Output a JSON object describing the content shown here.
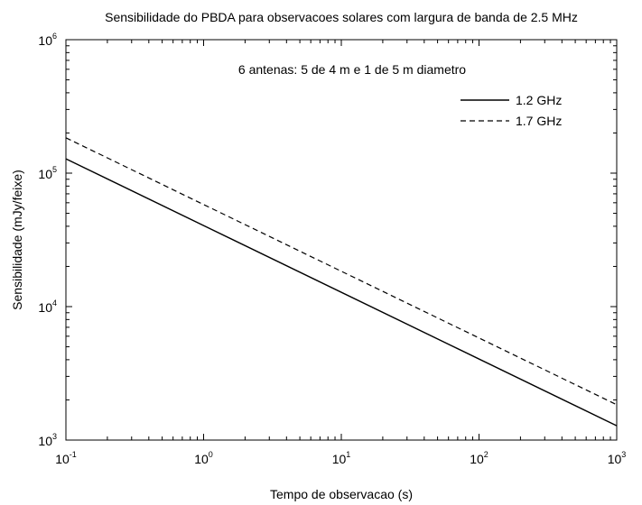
{
  "chart_data": {
    "type": "line",
    "title": "Sensibilidade do PBDA para observacoes solares com largura de banda de 2.5 MHz",
    "xlabel": "Tempo de observacao (s)",
    "ylabel": "Sensibilidade (mJy/feixe)",
    "x_scale": "log",
    "y_scale": "log",
    "xlim": [
      0.1,
      1000
    ],
    "ylim": [
      1000,
      1000000
    ],
    "x_ticks": [
      {
        "base": "10",
        "exp": "-1",
        "value": 0.1
      },
      {
        "base": "10",
        "exp": "0",
        "value": 1
      },
      {
        "base": "10",
        "exp": "1",
        "value": 10
      },
      {
        "base": "10",
        "exp": "2",
        "value": 100
      },
      {
        "base": "10",
        "exp": "3",
        "value": 1000
      }
    ],
    "y_ticks": [
      {
        "base": "10",
        "exp": "3",
        "value": 1000
      },
      {
        "base": "10",
        "exp": "4",
        "value": 10000
      },
      {
        "base": "10",
        "exp": "5",
        "value": 100000
      },
      {
        "base": "10",
        "exp": "6",
        "value": 1000000
      }
    ],
    "annotation": "6 antenas: 5 de 4 m e 1 de 5 m diametro",
    "legend_position": "top-right",
    "grid": false,
    "series": [
      {
        "name": "1.2 GHz",
        "style": "solid",
        "color": "#000000",
        "x": [
          0.1,
          1000
        ],
        "y": [
          128000,
          1280
        ]
      },
      {
        "name": "1.7 GHz",
        "style": "dashed",
        "color": "#000000",
        "x": [
          0.1,
          1000
        ],
        "y": [
          184000,
          1840
        ]
      }
    ]
  }
}
